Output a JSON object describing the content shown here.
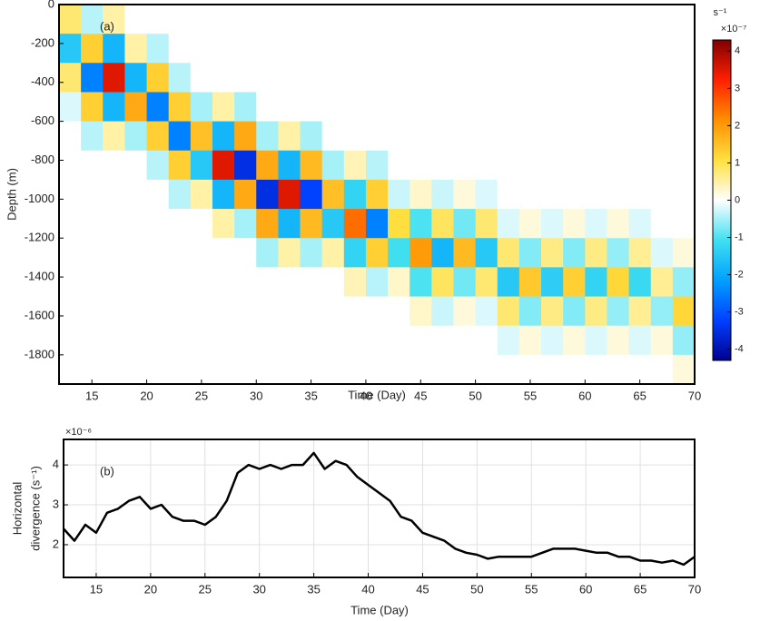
{
  "chart_data": [
    {
      "type": "heatmap",
      "annotation": "(a)",
      "x_label": "Time (Day)",
      "y_label": "Depth (m)",
      "colorbar_label": "s⁻¹",
      "colorbar_multiplier": "×10⁻⁷",
      "xlim": [
        12,
        70
      ],
      "xticks": [
        15,
        20,
        25,
        30,
        35,
        40,
        45,
        50,
        55,
        60,
        65,
        70
      ],
      "ylim": [
        -1950,
        0
      ],
      "yticks": [
        0,
        -200,
        -400,
        -600,
        -800,
        -1000,
        -1200,
        -1400,
        -1600,
        -1800
      ],
      "clim": [
        -4.3,
        4.3
      ],
      "cticks": [
        -4,
        -3,
        -2,
        -1,
        0,
        1,
        2,
        3,
        4
      ],
      "colors": [
        "#00008f",
        "#0040ff",
        "#00a0ff",
        "#40e0f0",
        "#ffffff",
        "#ffe040",
        "#ff9000",
        "#ff2000",
        "#800000"
      ],
      "x_edges": [
        12,
        14,
        16,
        18,
        20,
        22,
        24,
        26,
        28,
        30,
        32,
        34,
        36,
        38,
        40,
        42,
        44,
        46,
        48,
        50,
        52,
        54,
        56,
        58,
        60,
        62,
        64,
        66,
        68,
        70
      ],
      "y_edges": [
        0,
        -150,
        -300,
        -450,
        -600,
        -750,
        -900,
        -1050,
        -1200,
        -1350,
        -1500,
        -1650,
        -1800,
        -1950
      ],
      "z": [
        [
          0.8,
          -0.4,
          0.5,
          0,
          0,
          0,
          0,
          0,
          0,
          0,
          0,
          0,
          0,
          0,
          0,
          0,
          0,
          0,
          0,
          0,
          0,
          0,
          0,
          0,
          0,
          0,
          0,
          0,
          0
        ],
        [
          -1.5,
          1.3,
          -1.8,
          0.5,
          -0.4,
          0,
          0,
          0,
          0,
          0,
          0,
          0,
          0,
          0,
          0,
          0,
          0,
          0,
          0,
          0,
          0,
          0,
          0,
          0,
          0,
          0,
          0,
          0,
          0
        ],
        [
          0.8,
          -2.5,
          3.5,
          -1.8,
          1.3,
          -0.4,
          0,
          0,
          0,
          0,
          0,
          0,
          0,
          0,
          0,
          0,
          0,
          0,
          0,
          0,
          0,
          0,
          0,
          0,
          0,
          0,
          0,
          0,
          0
        ],
        [
          -0.2,
          1.3,
          -1.8,
          1.8,
          -2.5,
          1.3,
          -0.5,
          0.5,
          -0.5,
          0,
          0,
          0,
          0,
          0,
          0,
          0,
          0,
          0,
          0,
          0,
          0,
          0,
          0,
          0,
          0,
          0,
          0,
          0,
          0
        ],
        [
          0,
          -0.4,
          0.5,
          -0.5,
          1.3,
          -2.5,
          1.5,
          -1.8,
          1.8,
          -0.5,
          0.5,
          -0.5,
          0,
          0,
          0,
          0,
          0,
          0,
          0,
          0,
          0,
          0,
          0,
          0,
          0,
          0,
          0,
          0,
          0
        ],
        [
          0,
          0,
          0,
          0,
          -0.4,
          1.3,
          -1.5,
          3.5,
          -3.5,
          1.8,
          -1.8,
          1.6,
          -0.5,
          0.4,
          -0.4,
          0,
          0,
          0,
          0,
          0,
          0,
          0,
          0,
          0,
          0,
          0,
          0,
          0,
          0
        ],
        [
          0,
          0,
          0,
          0,
          0,
          -0.4,
          0.5,
          -1.8,
          1.8,
          -3.5,
          3.5,
          -3.2,
          1.5,
          -1.3,
          1.3,
          -0.3,
          0.3,
          -0.3,
          0.2,
          -0.2,
          0,
          0,
          0,
          0,
          0,
          0,
          0,
          0,
          0
        ],
        [
          0,
          0,
          0,
          0,
          0,
          0,
          0,
          0.5,
          -0.5,
          1.8,
          -1.8,
          1.6,
          -1.5,
          2.5,
          -2.5,
          1.1,
          -1,
          0.9,
          -0.8,
          0.8,
          -0.2,
          0.2,
          -0.2,
          0.2,
          -0.2,
          0.2,
          -0.2,
          0,
          0
        ],
        [
          0,
          0,
          0,
          0,
          0,
          0,
          0,
          0,
          0,
          -0.5,
          0.5,
          -0.5,
          0.5,
          -1.3,
          1.3,
          -1.1,
          2,
          -1.8,
          1.6,
          -1.5,
          0.8,
          -0.7,
          0.7,
          -0.7,
          0.7,
          -0.6,
          0.6,
          -0.2,
          0.2
        ],
        [
          0,
          0,
          0,
          0,
          0,
          0,
          0,
          0,
          0,
          0,
          0,
          0,
          0,
          0.4,
          -0.4,
          0.3,
          -1,
          0.9,
          -0.8,
          0.8,
          -1.5,
          1.4,
          -1.4,
          1.3,
          -1.3,
          1.2,
          -1.2,
          0.6,
          -0.6
        ],
        [
          0,
          0,
          0,
          0,
          0,
          0,
          0,
          0,
          0,
          0,
          0,
          0,
          0,
          0,
          0,
          0,
          0.3,
          -0.3,
          0.2,
          -0.2,
          0.8,
          -0.7,
          0.7,
          -0.7,
          0.7,
          -0.6,
          0.6,
          -0.6,
          1.2
        ],
        [
          0,
          0,
          0,
          0,
          0,
          0,
          0,
          0,
          0,
          0,
          0,
          0,
          0,
          0,
          0,
          0,
          0,
          0,
          0,
          0,
          -0.2,
          0.2,
          -0.2,
          0.2,
          -0.2,
          0.2,
          -0.2,
          0.2,
          -0.6
        ],
        [
          0,
          0,
          0,
          0,
          0,
          0,
          0,
          0,
          0,
          0,
          0,
          0,
          0,
          0,
          0,
          0,
          0,
          0,
          0,
          0,
          0,
          0,
          0,
          0,
          0,
          0,
          0,
          0,
          0.2
        ]
      ]
    },
    {
      "type": "line",
      "annotation": "(b)",
      "x_label": "Time (Day)",
      "y_label": [
        "Horizontal",
        "divergence (s⁻¹)"
      ],
      "y_multiplier": "×10⁻⁶",
      "color": "#000000",
      "grid": true,
      "xlim": [
        12,
        70
      ],
      "xticks": [
        15,
        20,
        25,
        30,
        35,
        40,
        45,
        50,
        55,
        60,
        65,
        70
      ],
      "ylim": [
        1.18,
        4.64
      ],
      "yticks": [
        2,
        3,
        4
      ],
      "x": [
        12,
        13,
        14,
        15,
        16,
        17,
        18,
        19,
        20,
        21,
        22,
        23,
        24,
        25,
        26,
        27,
        28,
        29,
        30,
        31,
        32,
        33,
        34,
        35,
        36,
        37,
        38,
        39,
        40,
        41,
        42,
        43,
        44,
        45,
        46,
        47,
        48,
        49,
        50,
        51,
        52,
        53,
        54,
        55,
        56,
        57,
        58,
        59,
        60,
        61,
        62,
        63,
        64,
        65,
        66,
        67,
        68,
        69,
        70
      ],
      "values": [
        2.4,
        2.1,
        2.5,
        2.3,
        2.8,
        2.9,
        3.1,
        3.2,
        2.9,
        3.0,
        2.7,
        2.6,
        2.6,
        2.5,
        2.7,
        3.1,
        3.8,
        4.0,
        3.9,
        4.0,
        3.9,
        4.0,
        4.0,
        4.3,
        3.9,
        4.1,
        4.0,
        3.7,
        3.5,
        3.3,
        3.1,
        2.7,
        2.6,
        2.3,
        2.2,
        2.1,
        1.9,
        1.8,
        1.75,
        1.65,
        1.7,
        1.7,
        1.7,
        1.7,
        1.8,
        1.9,
        1.9,
        1.9,
        1.85,
        1.8,
        1.8,
        1.7,
        1.7,
        1.6,
        1.6,
        1.55,
        1.6,
        1.5,
        1.7
      ]
    }
  ]
}
